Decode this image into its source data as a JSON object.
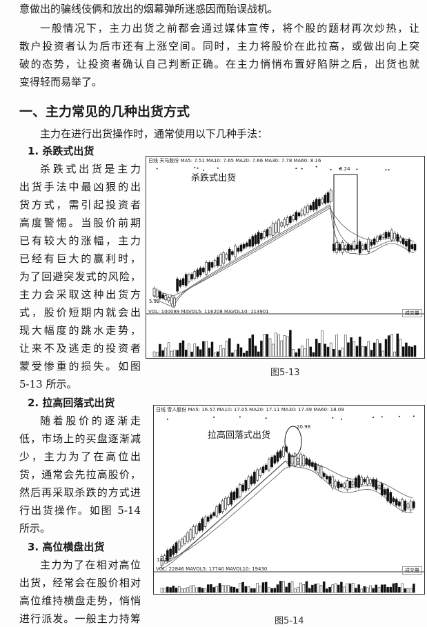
{
  "top_line": "意做出的骗线伎俩和放出的烟幕弹所迷惑因而贻误战机。",
  "para1": [
    "一般情况下，主力出货之前都会通过媒体宣传，将个股的题材再次炒热，让",
    "散户投资者认为后市还有上涨空间。同时，主力将股价在此拉高，或做出向上突",
    "破的态势，让投资者确认自己判断正确。在主力悄悄布置好陷阱之后，出货也就",
    "变得轻而易举了。"
  ],
  "section_title": "一、主力常见的几种出货方式",
  "intro": "主力在进行出货操作时，通常使用以下几种手法：",
  "sub1": {
    "title": "1. 杀跌式出货",
    "lines": [
      "杀跌式出货是主力",
      "出货手法中最凶狠的出",
      "货方式，需引起投资者",
      "高度警惕。当股价前期",
      "已有较大的涨幅，主力",
      "已经有巨大的赢利时，",
      "为了回避突发式的风险，",
      "主力会采取这种出货方",
      "式，股价短期内就会出",
      "现大幅度的跳水走势，",
      "让来不及逃走的投资者",
      "蒙受惨重的损失。如图",
      "5-13 所示。"
    ]
  },
  "sub2": {
    "title": "2. 拉高回落式出货",
    "lines": [
      "随着股价的逐渐走",
      "低，市场上的买盘逐渐减",
      "少，主力为了在高位出",
      "货，通常会先拉高股价，",
      "然后再采取杀跌的方式进",
      "行出货操作。如图 5-14",
      "所示。"
    ]
  },
  "sub3": {
    "title": "3. 高位横盘出货",
    "lines": [
      "主力为了在相对高位",
      "出货，经常会在股价相对",
      "高位维持横盘走势，悄悄",
      "进行派发。一般主力持筹"
    ]
  },
  "chart1": {
    "header": "日线  天马股份  MA5: 7.51  MA10: 7.65  MA20: 7.66  MA30: 7.78  MA60: 8.16",
    "annotation": "杀跌式出货",
    "high": "8.24",
    "low": "5.92",
    "vol_header": "VOL: 100089  MAVOL5: 116208  MAVOL10: 113901",
    "vol_dropdown": "成交量",
    "caption": "图5-13"
  },
  "chart2": {
    "header": "日线  雪人股份  MA5: 16.57  MA10: 17.05  MA20: 17.11  MA30: 17.49  MA60: 18.09",
    "annotation": "拉高回落式出货",
    "high": "20.98",
    "low": "14.20",
    "vol_header": "VOL: 22846  MAVOL5: 17740  MAVOL10: 19430",
    "vol_dropdown": "成交量",
    "caption": "图5-14"
  }
}
